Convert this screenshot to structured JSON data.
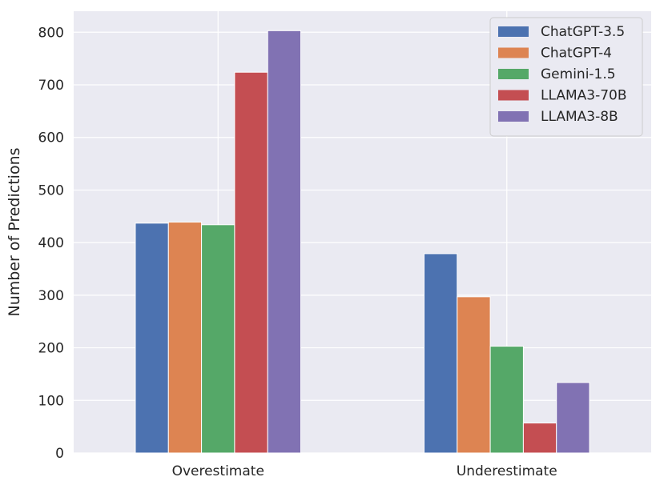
{
  "chart_data": {
    "type": "bar",
    "title": "",
    "xlabel": "",
    "ylabel": "Number of Predictions",
    "categories": [
      "Overestimate",
      "Underestimate"
    ],
    "series": [
      {
        "name": "ChatGPT-3.5",
        "color": "#4C72B0",
        "values": [
          437,
          379
        ]
      },
      {
        "name": "ChatGPT-4",
        "color": "#DD8452",
        "values": [
          439,
          297
        ]
      },
      {
        "name": "Gemini-1.5",
        "color": "#55A868",
        "values": [
          434,
          203
        ]
      },
      {
        "name": "LLAMA3-70B",
        "color": "#C44E52",
        "values": [
          724,
          57
        ]
      },
      {
        "name": "LLAMA3-8B",
        "color": "#8172B3",
        "values": [
          803,
          134
        ]
      }
    ],
    "ylim": [
      0,
      840
    ],
    "yticks": [
      "0",
      "100",
      "200",
      "300",
      "400",
      "500",
      "600",
      "700",
      "800"
    ],
    "grid": true,
    "legend_position": "top-right",
    "background_color": "#EAEAF2",
    "grid_color": "#FFFFFF"
  }
}
